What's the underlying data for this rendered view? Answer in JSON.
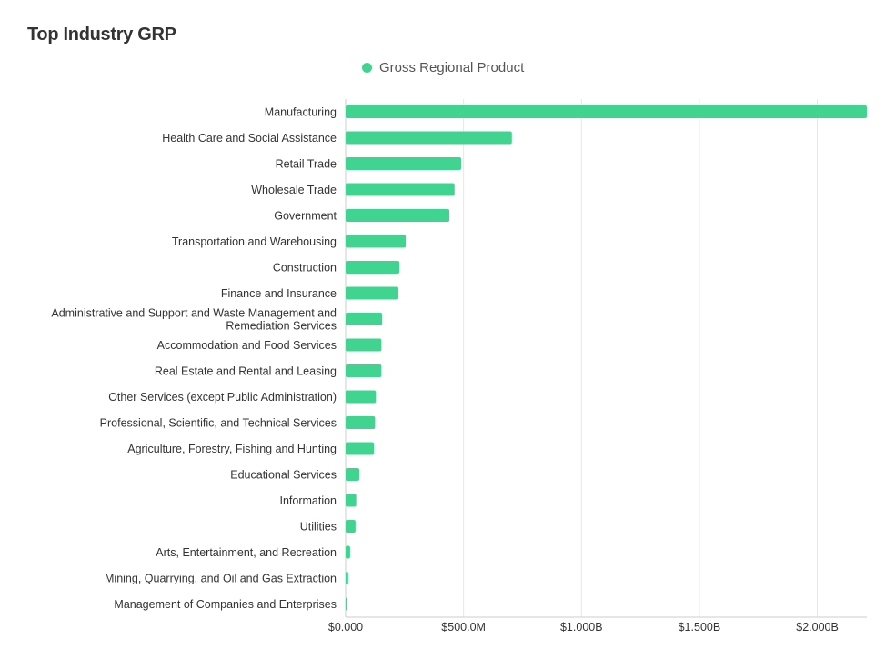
{
  "chart_data": {
    "type": "bar",
    "orientation": "horizontal",
    "title": "Top Industry GRP",
    "legend": [
      {
        "name": "Gross Regional Product",
        "color": "#41d491"
      }
    ],
    "legend_position": "top",
    "categories": [
      "Manufacturing",
      "Health Care and Social Assistance",
      "Retail Trade",
      "Wholesale Trade",
      "Government",
      "Transportation and Warehousing",
      "Construction",
      "Finance and Insurance",
      "Administrative and Support and Waste Management and Remediation Services",
      "Accommodation and Food Services",
      "Real Estate and Rental and Leasing",
      "Other Services (except Public Administration)",
      "Professional, Scientific, and Technical Services",
      "Agriculture, Forestry, Fishing and Hunting",
      "Educational Services",
      "Information",
      "Utilities",
      "Arts, Entertainment, and Recreation",
      "Mining, Quarrying, and Oil and Gas Extraction",
      "Management of Companies and Enterprises"
    ],
    "category_lines": [
      [
        "Manufacturing"
      ],
      [
        "Health Care and Social Assistance"
      ],
      [
        "Retail Trade"
      ],
      [
        "Wholesale Trade"
      ],
      [
        "Government"
      ],
      [
        "Transportation and Warehousing"
      ],
      [
        "Construction"
      ],
      [
        "Finance and Insurance"
      ],
      [
        "Administrative and Support and Waste Management and",
        "Remediation Services"
      ],
      [
        "Accommodation and Food Services"
      ],
      [
        "Real Estate and Rental and Leasing"
      ],
      [
        "Other Services (except Public Administration)"
      ],
      [
        "Professional, Scientific, and Technical Services"
      ],
      [
        "Agriculture, Forestry, Fishing and Hunting"
      ],
      [
        "Educational Services"
      ],
      [
        "Information"
      ],
      [
        "Utilities"
      ],
      [
        "Arts, Entertainment, and Recreation"
      ],
      [
        "Mining, Quarrying, and Oil and Gas Extraction"
      ],
      [
        "Management of Companies and Enterprises"
      ]
    ],
    "series": [
      {
        "name": "Gross Regional Product",
        "values": [
          2210,
          705,
          490,
          462,
          440,
          255,
          228,
          224,
          155,
          152,
          152,
          128,
          125,
          120,
          58,
          45,
          42,
          19,
          11,
          6
        ]
      }
    ],
    "value_unit": "millions USD",
    "xlim": [
      0,
      2210
    ],
    "x_ticks": [
      0,
      500,
      1000,
      1500,
      2000
    ],
    "x_tick_labels": [
      "$0.000",
      "$500.0M",
      "$1.000B",
      "$1.500B",
      "$2.000B"
    ],
    "grid": "vertical",
    "bar_color": "#41d491"
  }
}
